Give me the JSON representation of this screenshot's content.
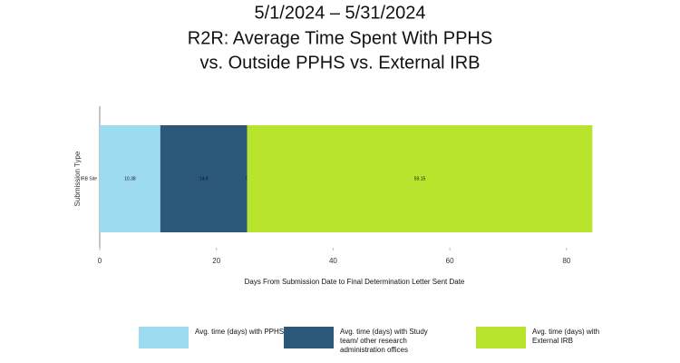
{
  "chart_data": {
    "type": "stacked-bar-horizontal",
    "title": [
      "5/1/2024 – 5/31/2024",
      "R2R: Average Time Spent With PPHS",
      "vs. Outside PPHS vs. External IRB"
    ],
    "y_label": "Submission Type",
    "x_label": "Days From Submission Date to Final Determination Letter Sent Date",
    "categories": [
      "IRB Site"
    ],
    "series": [
      {
        "name": "Avg. time (days) with PPHS",
        "color": "#9ddcf0",
        "values": [
          10.38
        ]
      },
      {
        "name": "Avg. time (days) with Study team/ other research administration offices",
        "color": "#2b5878",
        "values": [
          14.9
        ]
      },
      {
        "color": "#2b5878",
        "values": [
          0
        ]
      },
      {
        "name": "Avg. time (days) with External IRB",
        "color": "#b9e42e",
        "values": [
          59.15
        ]
      }
    ],
    "xlim": [
      0,
      85
    ],
    "xticks": [
      0,
      20,
      40,
      60,
      80
    ]
  }
}
